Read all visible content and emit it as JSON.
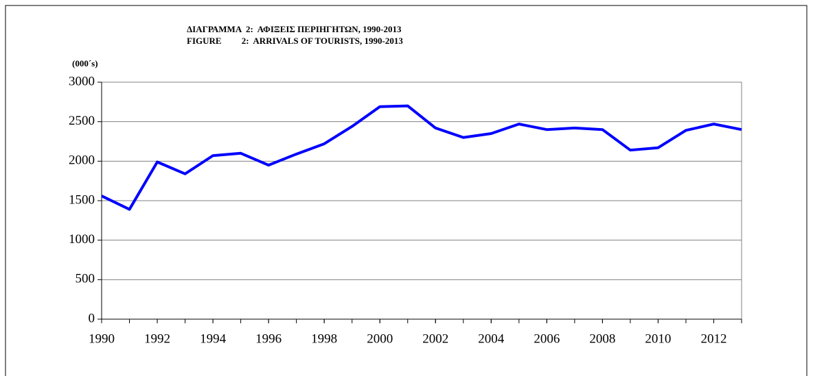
{
  "chart_data": {
    "type": "line",
    "title": "ΔΙΑΓΡΑΜΜΑ  2:  ΑΦΙΞΕΙΣ ΠΕΡΙΗΓΗΤΩΝ, 1990-2013",
    "subtitle": "FIGURE         2:  ARRIVALS OF TOURISTS, 1990-2013",
    "y_label": "(000´s)",
    "x": [
      1990,
      1991,
      1992,
      1993,
      1994,
      1995,
      1996,
      1997,
      1998,
      1999,
      2000,
      2001,
      2002,
      2003,
      2004,
      2005,
      2006,
      2007,
      2008,
      2009,
      2010,
      2011,
      2012,
      2013
    ],
    "series": [
      {
        "name": "Arrivals of tourists",
        "color": "#0000ff",
        "values": [
          1560,
          1390,
          1990,
          1840,
          2070,
          2100,
          1950,
          2090,
          2220,
          2440,
          2690,
          2700,
          2420,
          2300,
          2350,
          2470,
          2400,
          2420,
          2400,
          2140,
          2170,
          2390,
          2470,
          2400
        ]
      }
    ],
    "xlim": [
      1990,
      2013
    ],
    "xticks": [
      1990,
      1992,
      1994,
      1996,
      1998,
      2000,
      2002,
      2004,
      2006,
      2008,
      2010,
      2012
    ],
    "ylim": [
      0,
      3000
    ],
    "yticks": [
      0,
      500,
      1000,
      1500,
      2000,
      2500,
      3000
    ],
    "grid": true
  }
}
